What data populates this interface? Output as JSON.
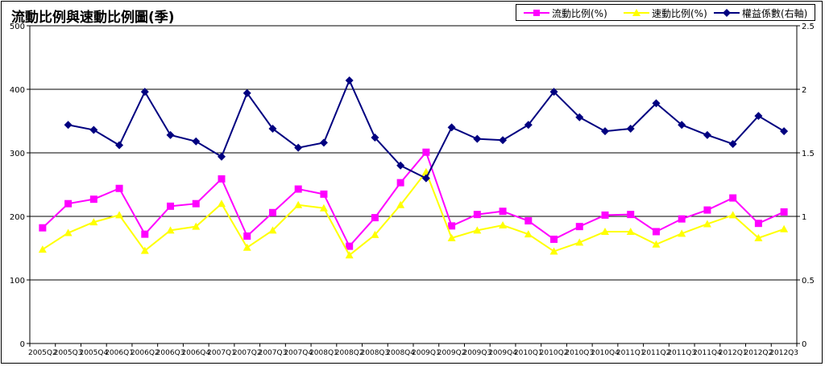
{
  "chart_data": {
    "type": "line",
    "title": "流動比例與速動比例圖(季)",
    "categories": [
      "2005Q2",
      "2005Q3",
      "2005Q4",
      "2006Q1",
      "2006Q2",
      "2006Q3",
      "2006Q4",
      "2007Q1",
      "2007Q2",
      "2007Q3",
      "2007Q4",
      "2008Q1",
      "2008Q2",
      "2008Q3",
      "2008Q4",
      "2009Q1",
      "2009Q2",
      "2009Q3",
      "2009Q4",
      "2010Q1",
      "2010Q2",
      "2010Q3",
      "2010Q4",
      "2011Q1",
      "2011Q2",
      "2011Q3",
      "2011Q4",
      "2012Q1",
      "2012Q2",
      "2012Q3"
    ],
    "y_left": {
      "min": 0,
      "max": 500,
      "ticks": [
        0,
        100,
        200,
        300,
        400,
        500
      ]
    },
    "y_right": {
      "min": 0,
      "max": 2.5,
      "ticks": [
        "0",
        "0.5",
        "1",
        "1.5",
        "2",
        "2.5"
      ]
    },
    "grid": "horizontal",
    "legend_position": "top-right",
    "series": [
      {
        "name": "流動比例(%)",
        "axis": "left",
        "color": "#ff00ff",
        "marker": "square",
        "values": [
          182,
          220,
          227,
          244,
          172,
          216,
          220,
          259,
          169,
          206,
          243,
          235,
          153,
          198,
          253,
          301,
          185,
          203,
          208,
          193,
          164,
          184,
          202,
          203,
          176,
          196,
          210,
          229,
          189,
          207
        ]
      },
      {
        "name": "速動比例(%)",
        "axis": "left",
        "color": "#ffff00",
        "marker": "triangle",
        "values": [
          148,
          174,
          191,
          202,
          146,
          178,
          184,
          220,
          151,
          178,
          218,
          213,
          139,
          171,
          218,
          270,
          166,
          178,
          186,
          172,
          145,
          159,
          176,
          176,
          156,
          173,
          188,
          202,
          166,
          180
        ]
      },
      {
        "name": "權益係數(右軸)",
        "axis": "right",
        "color": "#000080",
        "marker": "diamond",
        "values": [
          null,
          1.72,
          1.68,
          1.56,
          1.98,
          1.64,
          1.59,
          1.47,
          1.97,
          1.69,
          1.54,
          1.58,
          2.07,
          1.62,
          1.4,
          1.3,
          1.7,
          1.61,
          1.6,
          1.72,
          1.98,
          1.78,
          1.67,
          1.69,
          1.89,
          1.72,
          1.64,
          1.57,
          1.79,
          1.67
        ]
      }
    ]
  }
}
